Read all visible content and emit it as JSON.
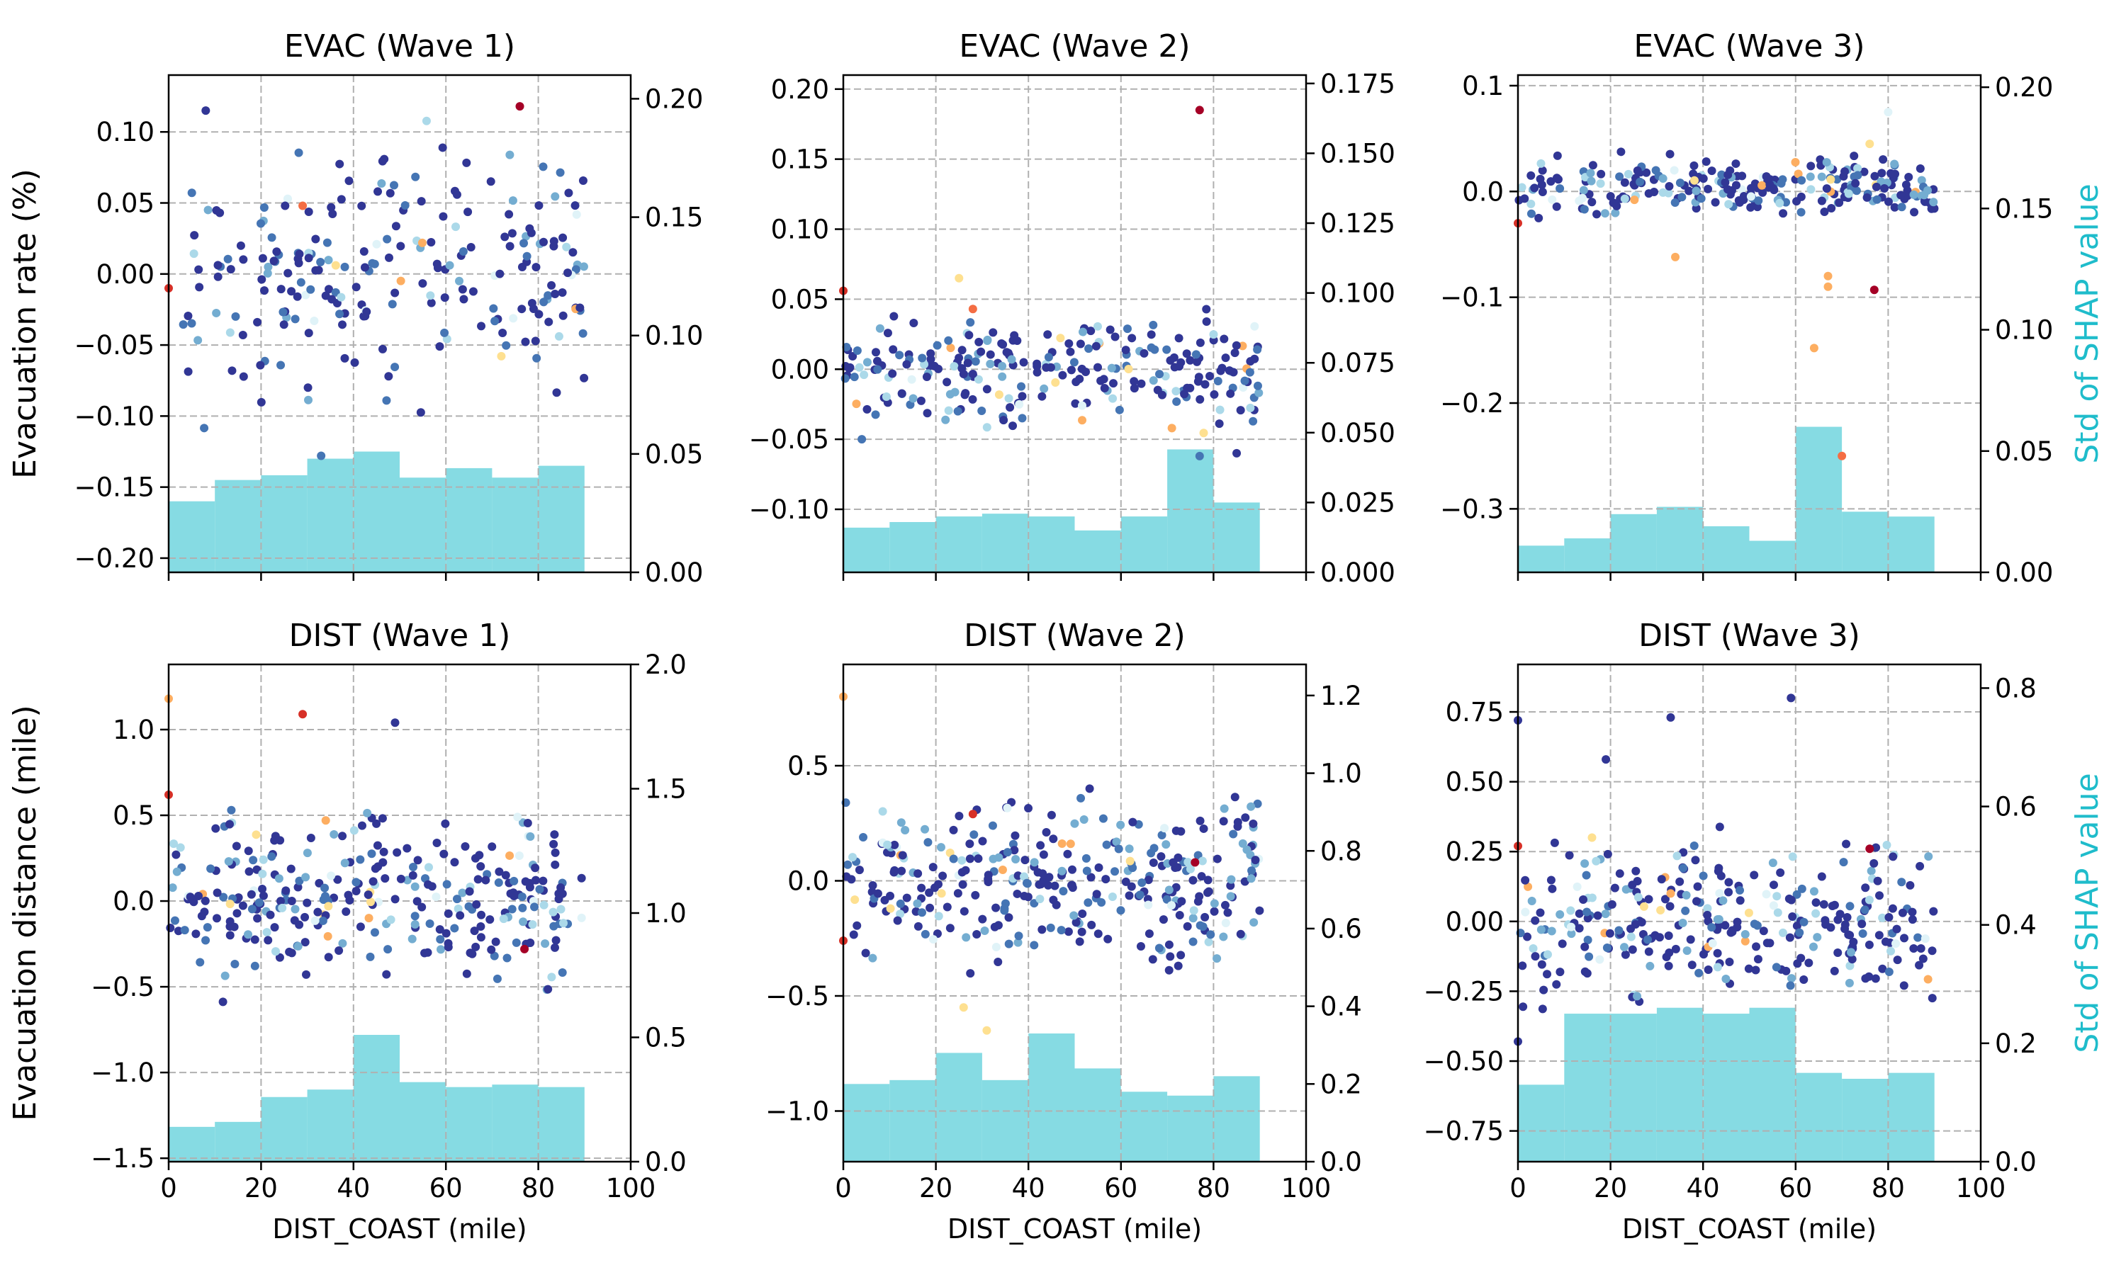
{
  "figure": {
    "shared_xlabel": "DIST_COAST (mile)",
    "right_axis_label": "Std of SHAP value",
    "colors": {
      "bar": "#86dbe3",
      "right_axis_label": "#1fbccb",
      "grid": "#b0b0b0",
      "scatter_palette": [
        "#313695",
        "#4575b4",
        "#74add1",
        "#abd9e9",
        "#e0f3f8",
        "#fee090",
        "#fdae61",
        "#f46d43",
        "#d73027",
        "#a50026"
      ]
    }
  },
  "chart_data": [
    {
      "type": "scatter",
      "title": "EVAC (Wave 1)",
      "ylabel": "Evacuation rate (%)",
      "xlabel": "",
      "xlim": [
        0,
        100
      ],
      "ylim": [
        -0.21,
        0.14
      ],
      "yticks": [
        -0.2,
        -0.15,
        -0.1,
        -0.05,
        0.0,
        0.05,
        0.1
      ],
      "ytick_labels": [
        "−0.20",
        "−0.15",
        "−0.10",
        "−0.05",
        "0.00",
        "0.05",
        "0.10"
      ],
      "y2lim": [
        0,
        0.21
      ],
      "y2ticks": [
        0,
        0.05,
        0.1,
        0.15,
        0.2
      ],
      "y2tick_labels": [
        "0.00",
        "0.05",
        "0.10",
        "0.15",
        "0.20"
      ],
      "xticks": [
        0,
        20,
        40,
        60,
        80,
        100
      ],
      "show_xtick_labels": false,
      "grid": true,
      "scatter": {
        "center": 0.0,
        "spread": 0.05,
        "seed": 11,
        "count": 230,
        "outliers": [
          [
            76,
            0.118,
            9
          ],
          [
            29,
            0.048,
            7
          ],
          [
            0,
            -0.01,
            8
          ],
          [
            33,
            -0.128,
            1
          ]
        ]
      },
      "bars": {
        "bin_edges": [
          0,
          10,
          20,
          30,
          40,
          50,
          60,
          70,
          80,
          90
        ],
        "values": [
          0.03,
          0.039,
          0.041,
          0.048,
          0.051,
          0.04,
          0.044,
          0.04,
          0.045
        ]
      }
    },
    {
      "type": "scatter",
      "title": "EVAC (Wave 2)",
      "ylabel": "",
      "xlabel": "",
      "xlim": [
        0,
        100
      ],
      "ylim": [
        -0.145,
        0.21
      ],
      "yticks": [
        -0.1,
        -0.05,
        0.0,
        0.05,
        0.1,
        0.15,
        0.2
      ],
      "ytick_labels": [
        "−0.10",
        "−0.05",
        "0.00",
        "0.05",
        "0.10",
        "0.15",
        "0.20"
      ],
      "y2lim": [
        0,
        0.178
      ],
      "y2ticks": [
        0,
        0.025,
        0.05,
        0.075,
        0.1,
        0.125,
        0.15,
        0.175
      ],
      "y2tick_labels": [
        "0.000",
        "0.025",
        "0.050",
        "0.075",
        "0.100",
        "0.125",
        "0.150",
        "0.175"
      ],
      "xticks": [
        0,
        20,
        40,
        60,
        80,
        100
      ],
      "show_xtick_labels": false,
      "grid": true,
      "scatter": {
        "center": 0.0,
        "spread": 0.022,
        "seed": 22,
        "count": 250,
        "outliers": [
          [
            77,
            0.185,
            9
          ],
          [
            0,
            0.056,
            8
          ],
          [
            28,
            0.043,
            7
          ],
          [
            25,
            0.065,
            5
          ],
          [
            71,
            -0.042,
            6
          ],
          [
            77,
            -0.062,
            1
          ],
          [
            85,
            -0.06,
            0
          ],
          [
            4,
            -0.05,
            1
          ]
        ]
      },
      "bars": {
        "bin_edges": [
          0,
          10,
          20,
          30,
          40,
          50,
          60,
          70,
          80,
          90
        ],
        "values": [
          0.016,
          0.018,
          0.02,
          0.021,
          0.02,
          0.015,
          0.02,
          0.044,
          0.025
        ]
      }
    },
    {
      "type": "scatter",
      "title": "EVAC (Wave 3)",
      "ylabel": "",
      "xlabel": "",
      "xlim": [
        0,
        100
      ],
      "ylim": [
        -0.36,
        0.11
      ],
      "yticks": [
        -0.3,
        -0.2,
        -0.1,
        0.0,
        0.1
      ],
      "ytick_labels": [
        "−0.3",
        "−0.2",
        "−0.1",
        "0.0",
        "0.1"
      ],
      "y2lim": [
        0,
        0.205
      ],
      "y2ticks": [
        0,
        0.05,
        0.1,
        0.15,
        0.2
      ],
      "y2tick_labels": [
        "0.00",
        "0.05",
        "0.10",
        "0.15",
        "0.20"
      ],
      "xticks": [
        0,
        20,
        40,
        60,
        80,
        100
      ],
      "show_xtick_labels": false,
      "grid": true,
      "show_right_label": true,
      "scatter": {
        "center": 0.005,
        "spread": 0.016,
        "seed": 33,
        "count": 250,
        "outliers": [
          [
            80,
            0.075,
            4
          ],
          [
            76,
            0.045,
            5
          ],
          [
            0,
            -0.03,
            8
          ],
          [
            34,
            -0.062,
            6
          ],
          [
            67,
            -0.08,
            6
          ],
          [
            67,
            -0.09,
            6
          ],
          [
            64,
            -0.148,
            6
          ],
          [
            77,
            -0.093,
            9
          ],
          [
            70,
            -0.25,
            7
          ]
        ]
      },
      "bars": {
        "bin_edges": [
          0,
          10,
          20,
          30,
          40,
          50,
          60,
          70,
          80,
          90
        ],
        "values": [
          0.011,
          0.014,
          0.024,
          0.027,
          0.019,
          0.013,
          0.06,
          0.025,
          0.023
        ]
      }
    },
    {
      "type": "scatter",
      "title": "DIST (Wave 1)",
      "ylabel": "Evacuation distance (mile)",
      "xlabel": "DIST_COAST (mile)",
      "xlim": [
        0,
        100
      ],
      "ylim": [
        -1.52,
        1.38
      ],
      "yticks": [
        -1.5,
        -1.0,
        -0.5,
        0.0,
        0.5,
        1.0
      ],
      "ytick_labels": [
        "−1.5",
        "−1.0",
        "−0.5",
        "0.0",
        "0.5",
        "1.0"
      ],
      "y2lim": [
        0,
        2.0
      ],
      "y2ticks": [
        0,
        0.5,
        1.0,
        1.5,
        2.0
      ],
      "y2tick_labels": [
        "0.0",
        "0.5",
        "1.0",
        "1.5",
        "2.0"
      ],
      "xticks": [
        0,
        20,
        40,
        60,
        80,
        100
      ],
      "xtick_labels": [
        "0",
        "20",
        "40",
        "60",
        "80",
        "100"
      ],
      "show_xtick_labels": true,
      "grid": true,
      "scatter": {
        "center": 0.0,
        "spread": 0.27,
        "seed": 44,
        "count": 300,
        "outliers": [
          [
            29,
            1.09,
            8
          ],
          [
            0,
            1.18,
            6
          ],
          [
            0,
            0.62,
            8
          ],
          [
            49,
            1.04,
            0
          ],
          [
            77,
            -0.28,
            9
          ],
          [
            34,
            0.47,
            6
          ]
        ]
      },
      "bars": {
        "bin_edges": [
          0,
          10,
          20,
          30,
          40,
          50,
          60,
          70,
          80,
          90
        ],
        "values": [
          0.14,
          0.16,
          0.26,
          0.29,
          0.51,
          0.32,
          0.3,
          0.31,
          0.3
        ]
      }
    },
    {
      "type": "scatter",
      "title": "DIST (Wave 2)",
      "ylabel": "",
      "xlabel": "DIST_COAST (mile)",
      "xlim": [
        0,
        100
      ],
      "ylim": [
        -1.22,
        0.94
      ],
      "yticks": [
        -1.0,
        -0.5,
        0.0,
        0.5
      ],
      "ytick_labels": [
        "−1.0",
        "−0.5",
        "0.0",
        "0.5"
      ],
      "y2lim": [
        0,
        1.28
      ],
      "y2ticks": [
        0,
        0.2,
        0.4,
        0.6,
        0.8,
        1.0,
        1.2
      ],
      "y2tick_labels": [
        "0.0",
        "0.2",
        "0.4",
        "0.6",
        "0.8",
        "1.0",
        "1.2"
      ],
      "xticks": [
        0,
        20,
        40,
        60,
        80,
        100
      ],
      "xtick_labels": [
        "0",
        "20",
        "40",
        "60",
        "80",
        "100"
      ],
      "show_xtick_labels": true,
      "grid": true,
      "scatter": {
        "center": 0.0,
        "spread": 0.2,
        "seed": 55,
        "count": 320,
        "outliers": [
          [
            0,
            0.8,
            6
          ],
          [
            0,
            -0.26,
            8
          ],
          [
            28,
            0.29,
            8
          ],
          [
            76,
            0.08,
            9
          ],
          [
            31,
            -0.65,
            5
          ],
          [
            26,
            -0.55,
            5
          ]
        ]
      },
      "bars": {
        "bin_edges": [
          0,
          10,
          20,
          30,
          40,
          50,
          60,
          70,
          80,
          90
        ],
        "values": [
          0.2,
          0.21,
          0.28,
          0.21,
          0.33,
          0.24,
          0.18,
          0.17,
          0.22
        ]
      }
    },
    {
      "type": "scatter",
      "title": "DIST (Wave 3)",
      "ylabel": "",
      "xlabel": "DIST_COAST (mile)",
      "xlim": [
        0,
        100
      ],
      "ylim": [
        -0.86,
        0.92
      ],
      "yticks": [
        -0.75,
        -0.5,
        -0.25,
        0.0,
        0.25,
        0.5,
        0.75
      ],
      "ytick_labels": [
        "−0.75",
        "−0.50",
        "−0.25",
        "0.00",
        "0.25",
        "0.50",
        "0.75"
      ],
      "y2lim": [
        0,
        0.84
      ],
      "y2ticks": [
        0,
        0.2,
        0.4,
        0.6,
        0.8
      ],
      "y2tick_labels": [
        "0.0",
        "0.2",
        "0.4",
        "0.6",
        "0.8"
      ],
      "xticks": [
        0,
        20,
        40,
        60,
        80,
        100
      ],
      "xtick_labels": [
        "0",
        "20",
        "40",
        "60",
        "80",
        "100"
      ],
      "show_xtick_labels": true,
      "grid": true,
      "show_right_label": true,
      "scatter": {
        "center": 0.0,
        "spread": 0.16,
        "seed": 66,
        "count": 300,
        "outliers": [
          [
            0,
            0.72,
            0
          ],
          [
            33,
            0.73,
            0
          ],
          [
            59,
            0.8,
            0
          ],
          [
            0,
            0.27,
            8
          ],
          [
            76,
            0.26,
            9
          ],
          [
            0,
            -0.43,
            0
          ],
          [
            19,
            0.58,
            0
          ],
          [
            33,
            0.1,
            6
          ],
          [
            16,
            0.3,
            5
          ]
        ]
      },
      "bars": {
        "bin_edges": [
          0,
          10,
          20,
          30,
          40,
          50,
          60,
          70,
          80,
          90
        ],
        "values": [
          0.13,
          0.25,
          0.25,
          0.26,
          0.25,
          0.26,
          0.15,
          0.14,
          0.15
        ]
      }
    }
  ]
}
